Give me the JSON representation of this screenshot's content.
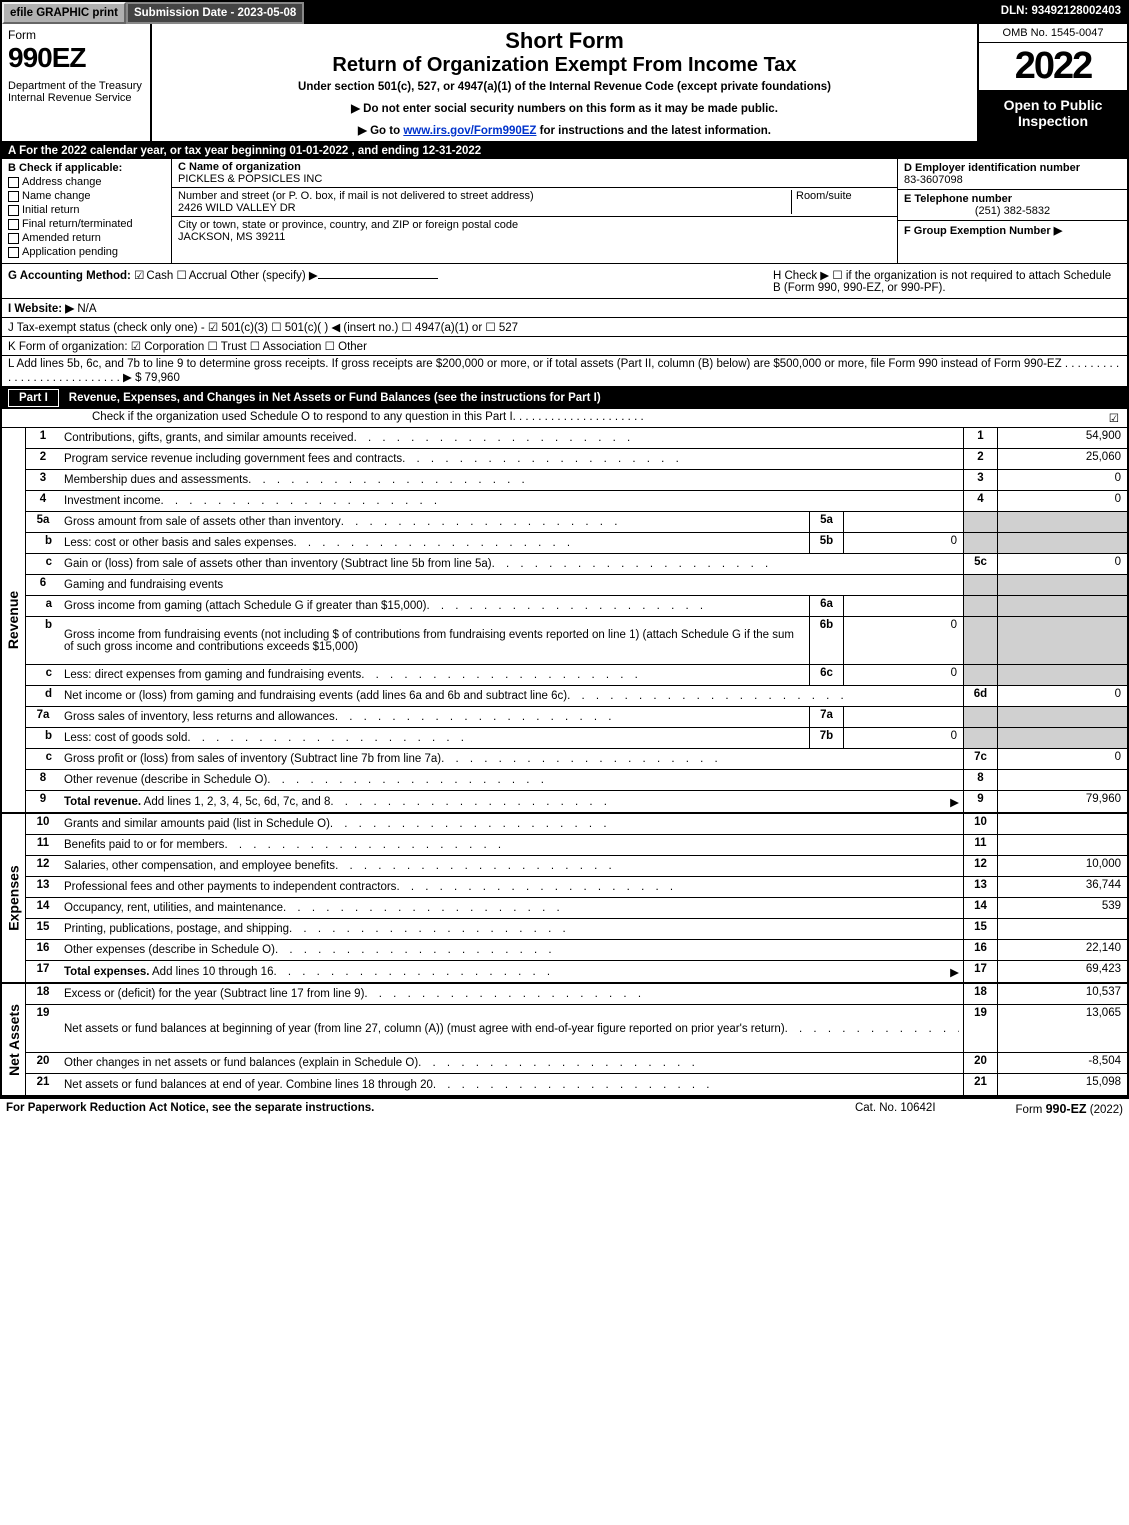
{
  "topbar": {
    "efile": "efile GRAPHIC print",
    "submission": "Submission Date - 2023-05-08",
    "dln": "DLN: 93492128002403"
  },
  "header": {
    "form_word": "Form",
    "form_number": "990EZ",
    "department": "Department of the Treasury\nInternal Revenue Service",
    "title1": "Short Form",
    "title2": "Return of Organization Exempt From Income Tax",
    "subtitle": "Under section 501(c), 527, or 4947(a)(1) of the Internal Revenue Code (except private foundations)",
    "note1": "▶ Do not enter social security numbers on this form as it may be made public.",
    "note2_pre": "▶ Go to ",
    "note2_link": "www.irs.gov/Form990EZ",
    "note2_post": " for instructions and the latest information.",
    "omb": "OMB No. 1545-0047",
    "year": "2022",
    "open_public": "Open to Public Inspection"
  },
  "secA": "A  For the 2022 calendar year, or tax year beginning 01-01-2022 , and ending 12-31-2022",
  "secB": {
    "label": "B  Check if applicable:",
    "items": [
      "Address change",
      "Name change",
      "Initial return",
      "Final return/terminated",
      "Amended return",
      "Application pending"
    ]
  },
  "secC": {
    "name_lbl": "C Name of organization",
    "name": "PICKLES & POPSICLES INC",
    "street_lbl": "Number and street (or P. O. box, if mail is not delivered to street address)",
    "room_lbl": "Room/suite",
    "street": "2426 WILD VALLEY DR",
    "city_lbl": "City or town, state or province, country, and ZIP or foreign postal code",
    "city": "JACKSON, MS  39211"
  },
  "secDEF": {
    "D_lbl": "D Employer identification number",
    "D_val": "83-3607098",
    "E_lbl": "E Telephone number",
    "E_val": "(251) 382-5832",
    "F_lbl": "F Group Exemption Number  ▶"
  },
  "secG": {
    "label": "G Accounting Method:",
    "cash": "Cash",
    "accrual": "Accrual",
    "other": "Other (specify) ▶"
  },
  "secH": "H  Check ▶  ☐  if the organization is not required to attach Schedule B (Form 990, 990-EZ, or 990-PF).",
  "secI": {
    "label": "I Website: ▶",
    "val": "N/A"
  },
  "secJ": "J Tax-exempt status (check only one) - ☑ 501(c)(3) ☐ 501(c)(  ) ◀ (insert no.) ☐ 4947(a)(1) or ☐ 527",
  "secK": "K Form of organization:  ☑ Corporation  ☐ Trust  ☐ Association  ☐ Other",
  "secL": {
    "text": "L Add lines 5b, 6c, and 7b to line 9 to determine gross receipts. If gross receipts are $200,000 or more, or if total assets (Part II, column (B) below) are $500,000 or more, file Form 990 instead of Form 990-EZ",
    "val": "▶ $ 79,960"
  },
  "partI": {
    "num": "Part I",
    "title": "Revenue, Expenses, and Changes in Net Assets or Fund Balances (see the instructions for Part I)",
    "sub": "Check if the organization used Schedule O to respond to any question in this Part I"
  },
  "rows_revenue": [
    {
      "ln": "1",
      "desc": "Contributions, gifts, grants, and similar amounts received",
      "end": "1",
      "val": "54,900"
    },
    {
      "ln": "2",
      "desc": "Program service revenue including government fees and contracts",
      "end": "2",
      "val": "25,060"
    },
    {
      "ln": "3",
      "desc": "Membership dues and assessments",
      "end": "3",
      "val": "0"
    },
    {
      "ln": "4",
      "desc": "Investment income",
      "end": "4",
      "val": "0"
    },
    {
      "ln": "5a",
      "desc": "Gross amount from sale of assets other than inventory",
      "mid": "5a",
      "midval": "",
      "grey_end": true
    },
    {
      "ln": "b",
      "desc": "Less: cost or other basis and sales expenses",
      "mid": "5b",
      "midval": "0",
      "grey_end": true
    },
    {
      "ln": "c",
      "desc": "Gain or (loss) from sale of assets other than inventory (Subtract line 5b from line 5a)",
      "end": "5c",
      "val": "0"
    },
    {
      "ln": "6",
      "desc": "Gaming and fundraising events",
      "grey_end": true,
      "noline": true
    },
    {
      "ln": "a",
      "desc": "Gross income from gaming (attach Schedule G if greater than $15,000)",
      "mid": "6a",
      "midval": "",
      "grey_end": true
    },
    {
      "ln": "b",
      "desc": "Gross income from fundraising events (not including $             of contributions from fundraising events reported on line 1) (attach Schedule G if the sum of such gross income and contributions exceeds $15,000)",
      "mid": "6b",
      "midval": "0",
      "grey_end": true,
      "tall": true
    },
    {
      "ln": "c",
      "desc": "Less: direct expenses from gaming and fundraising events",
      "mid": "6c",
      "midval": "0",
      "grey_end": true
    },
    {
      "ln": "d",
      "desc": "Net income or (loss) from gaming and fundraising events (add lines 6a and 6b and subtract line 6c)",
      "end": "6d",
      "val": "0"
    },
    {
      "ln": "7a",
      "desc": "Gross sales of inventory, less returns and allowances",
      "mid": "7a",
      "midval": "",
      "grey_end": true
    },
    {
      "ln": "b",
      "desc": "Less: cost of goods sold",
      "mid": "7b",
      "midval": "0",
      "grey_end": true
    },
    {
      "ln": "c",
      "desc": "Gross profit or (loss) from sales of inventory (Subtract line 7b from line 7a)",
      "end": "7c",
      "val": "0"
    },
    {
      "ln": "8",
      "desc": "Other revenue (describe in Schedule O)",
      "end": "8",
      "val": ""
    },
    {
      "ln": "9",
      "desc": "Total revenue. Add lines 1, 2, 3, 4, 5c, 6d, 7c, and 8",
      "end": "9",
      "val": "79,960",
      "bold": true,
      "arrow": true
    }
  ],
  "rows_expenses": [
    {
      "ln": "10",
      "desc": "Grants and similar amounts paid (list in Schedule O)",
      "end": "10",
      "val": ""
    },
    {
      "ln": "11",
      "desc": "Benefits paid to or for members",
      "end": "11",
      "val": ""
    },
    {
      "ln": "12",
      "desc": "Salaries, other compensation, and employee benefits",
      "end": "12",
      "val": "10,000"
    },
    {
      "ln": "13",
      "desc": "Professional fees and other payments to independent contractors",
      "end": "13",
      "val": "36,744"
    },
    {
      "ln": "14",
      "desc": "Occupancy, rent, utilities, and maintenance",
      "end": "14",
      "val": "539"
    },
    {
      "ln": "15",
      "desc": "Printing, publications, postage, and shipping",
      "end": "15",
      "val": ""
    },
    {
      "ln": "16",
      "desc": "Other expenses (describe in Schedule O)",
      "end": "16",
      "val": "22,140"
    },
    {
      "ln": "17",
      "desc": "Total expenses. Add lines 10 through 16",
      "end": "17",
      "val": "69,423",
      "bold": true,
      "arrow": true
    }
  ],
  "rows_netassets": [
    {
      "ln": "18",
      "desc": "Excess or (deficit) for the year (Subtract line 17 from line 9)",
      "end": "18",
      "val": "10,537"
    },
    {
      "ln": "19",
      "desc": "Net assets or fund balances at beginning of year (from line 27, column (A)) (must agree with end-of-year figure reported on prior year's return)",
      "end": "19",
      "val": "13,065",
      "tall": true
    },
    {
      "ln": "20",
      "desc": "Other changes in net assets or fund balances (explain in Schedule O)",
      "end": "20",
      "val": "-8,504"
    },
    {
      "ln": "21",
      "desc": "Net assets or fund balances at end of year. Combine lines 18 through 20",
      "end": "21",
      "val": "15,098"
    }
  ],
  "side_labels": {
    "rev": "Revenue",
    "exp": "Expenses",
    "net": "Net Assets"
  },
  "footer": {
    "left": "For Paperwork Reduction Act Notice, see the separate instructions.",
    "mid": "Cat. No. 10642I",
    "right_pre": "Form ",
    "right_form": "990-EZ",
    "right_post": " (2022)"
  },
  "colors": {
    "black": "#000000",
    "grey": "#d0d0d0",
    "link": "#0033cc"
  }
}
